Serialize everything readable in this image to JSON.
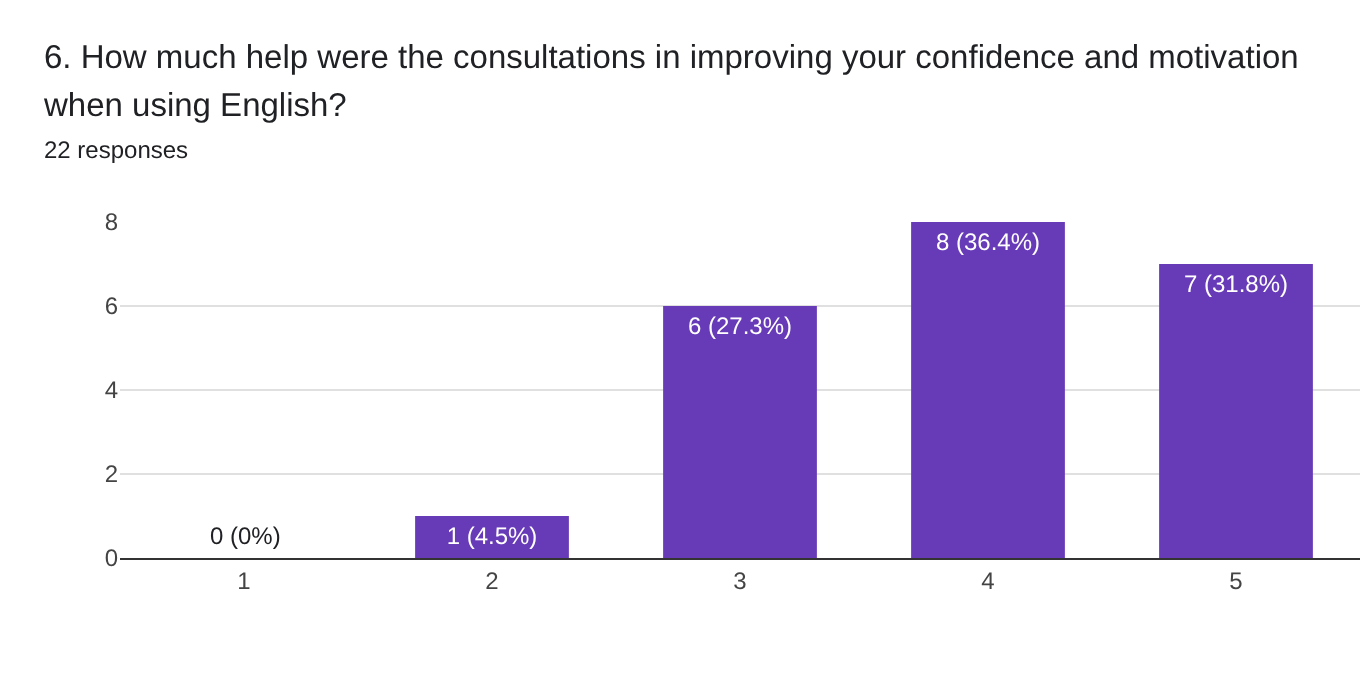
{
  "chart_data": {
    "type": "bar",
    "title": "6. How much help were the consultations in improving your confidence and motivation when using English?",
    "subtitle": "22 responses",
    "categories": [
      "1",
      "2",
      "3",
      "4",
      "5"
    ],
    "values": [
      0,
      1,
      6,
      8,
      7
    ],
    "value_labels": [
      "0 (0%)",
      "1 (4.5%)",
      "6 (27.3%)",
      "8 (36.4%)",
      "7 (31.8%)"
    ],
    "color": "#673ab7",
    "ylim": [
      0,
      8
    ],
    "yticks": [
      0,
      2,
      4,
      6,
      8
    ],
    "grid": "y",
    "legend": false
  }
}
